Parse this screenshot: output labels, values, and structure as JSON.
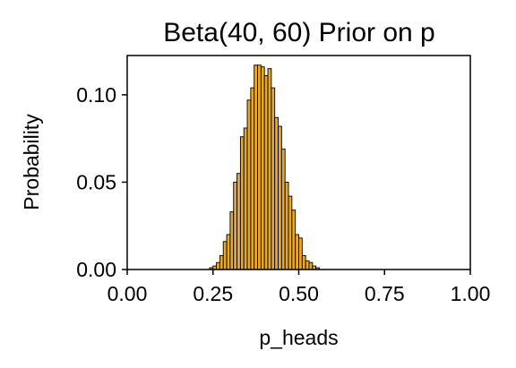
{
  "chart_data": {
    "type": "bar",
    "title": "Beta(40, 60) Prior on p",
    "xlabel": "p_heads",
    "ylabel": "Probability",
    "xlim": [
      0.0,
      1.0
    ],
    "ylim": [
      0.0,
      0.1225
    ],
    "xticks": [
      "0.00",
      "0.25",
      "0.50",
      "0.75",
      "1.00"
    ],
    "yticks": [
      "0.00",
      "0.05",
      "0.10"
    ],
    "grid": false,
    "bar_color": "#e8a82c",
    "edge_color": "#000000",
    "bin_width": 0.01,
    "bins": [
      {
        "x": 0.24,
        "y": 0.001
      },
      {
        "x": 0.25,
        "y": 0.002
      },
      {
        "x": 0.26,
        "y": 0.004
      },
      {
        "x": 0.27,
        "y": 0.008
      },
      {
        "x": 0.28,
        "y": 0.016
      },
      {
        "x": 0.29,
        "y": 0.02
      },
      {
        "x": 0.3,
        "y": 0.033
      },
      {
        "x": 0.31,
        "y": 0.05
      },
      {
        "x": 0.32,
        "y": 0.055
      },
      {
        "x": 0.33,
        "y": 0.076
      },
      {
        "x": 0.34,
        "y": 0.081
      },
      {
        "x": 0.35,
        "y": 0.097
      },
      {
        "x": 0.36,
        "y": 0.104
      },
      {
        "x": 0.37,
        "y": 0.117
      },
      {
        "x": 0.38,
        "y": 0.117
      },
      {
        "x": 0.39,
        "y": 0.116
      },
      {
        "x": 0.4,
        "y": 0.111
      },
      {
        "x": 0.41,
        "y": 0.115
      },
      {
        "x": 0.42,
        "y": 0.104
      },
      {
        "x": 0.43,
        "y": 0.087
      },
      {
        "x": 0.44,
        "y": 0.082
      },
      {
        "x": 0.45,
        "y": 0.069
      },
      {
        "x": 0.46,
        "y": 0.05
      },
      {
        "x": 0.47,
        "y": 0.042
      },
      {
        "x": 0.48,
        "y": 0.034
      },
      {
        "x": 0.49,
        "y": 0.02
      },
      {
        "x": 0.5,
        "y": 0.018
      },
      {
        "x": 0.51,
        "y": 0.008
      },
      {
        "x": 0.52,
        "y": 0.005
      },
      {
        "x": 0.53,
        "y": 0.004
      },
      {
        "x": 0.54,
        "y": 0.002
      },
      {
        "x": 0.55,
        "y": 0.001
      }
    ]
  }
}
